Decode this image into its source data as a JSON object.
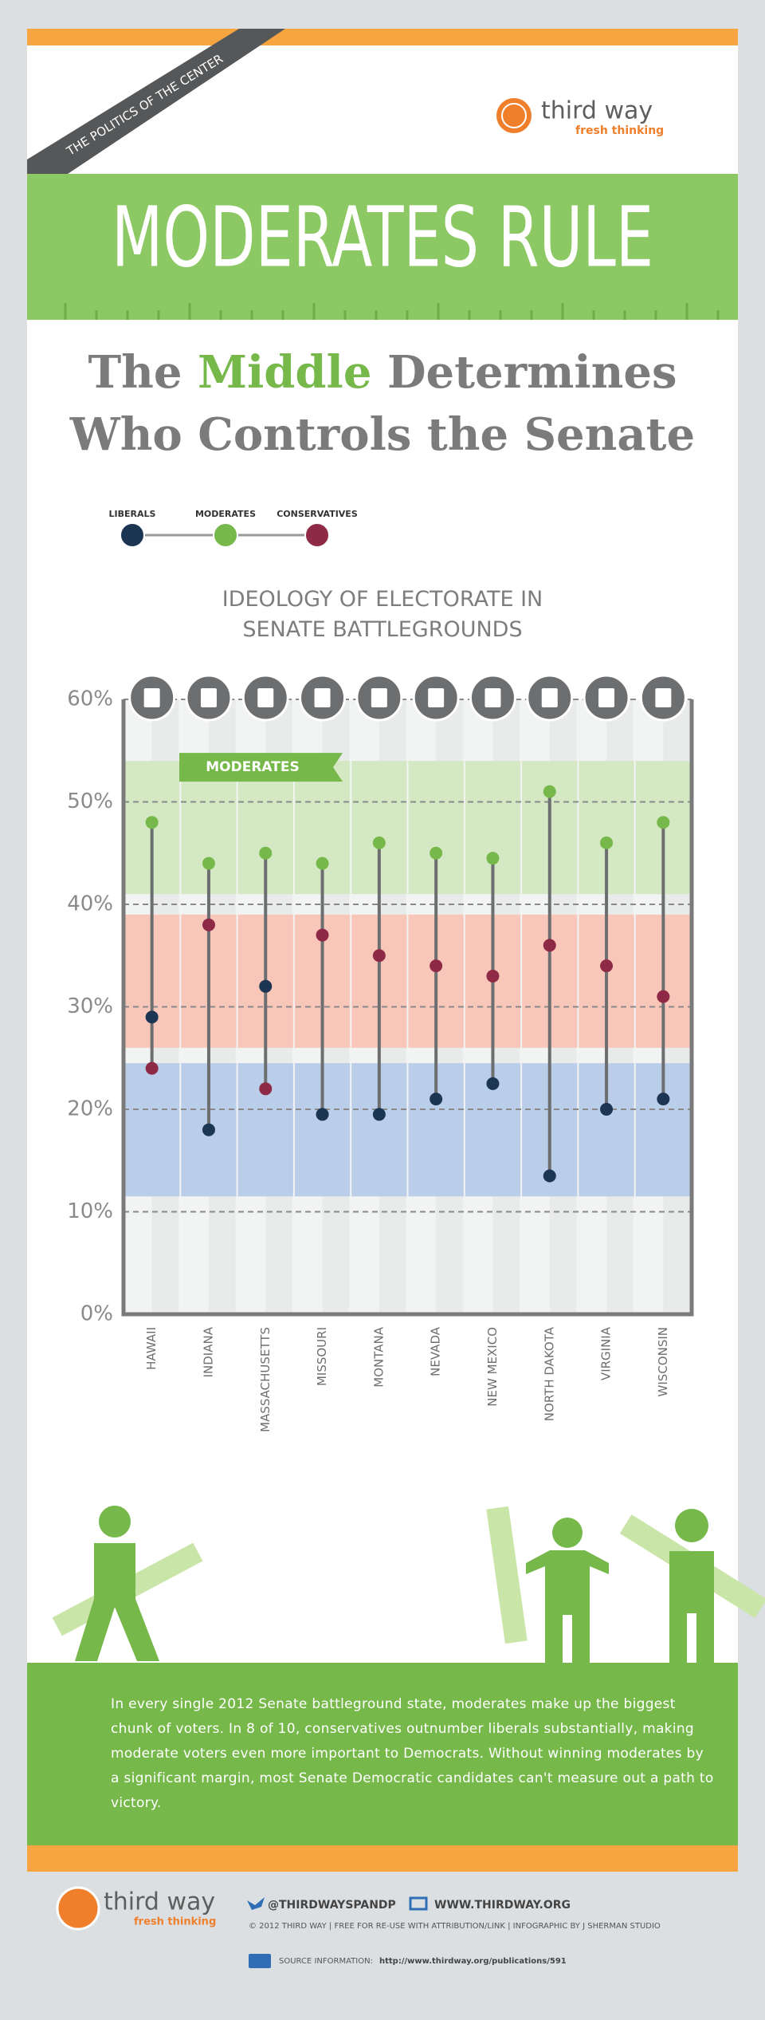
{
  "header": {
    "ribbon": "THE POLITICS OF THE CENTER",
    "logo_name": "third way",
    "logo_tagline": "fresh thinking",
    "banner": "MODERATES RULE",
    "headline_parts": [
      "The ",
      "Middle",
      " Determines"
    ],
    "headline_line2": "Who Controls the Senate"
  },
  "chart_data": {
    "type": "dot-range",
    "title": "IDEOLOGY OF ELECTORATE IN SENATE BATTLEGROUNDS",
    "categories": [
      "HAWAII",
      "INDIANA",
      "MASSACHUSETTS",
      "MISSOURI",
      "MONTANA",
      "NEVADA",
      "NEW MEXICO",
      "NORTH DAKOTA",
      "VIRGINIA",
      "WISCONSIN"
    ],
    "series": [
      {
        "name": "LIBERALS",
        "color": "#1c3553",
        "values": [
          29,
          18,
          32,
          19.5,
          19.5,
          21,
          22.5,
          13.5,
          20,
          21
        ]
      },
      {
        "name": "MODERATES",
        "color": "#76b84a",
        "values": [
          48,
          44,
          45,
          44,
          46,
          45,
          44.5,
          51,
          46,
          48
        ]
      },
      {
        "name": "CONSERVATIVES",
        "color": "#8e2a45",
        "values": [
          24,
          38,
          22,
          37,
          35,
          34,
          33,
          36,
          34,
          31
        ]
      }
    ],
    "bands": [
      {
        "label": "MODERATES",
        "color": "#d4e9c3",
        "range": [
          41,
          54
        ]
      },
      {
        "color": "#f8c7ba",
        "range": [
          26,
          39
        ]
      },
      {
        "color": "#bacde9",
        "range": [
          11.5,
          24.5
        ]
      }
    ],
    "ylim": [
      0,
      60
    ],
    "yticks": [
      {
        "value": 0,
        "label": "0%"
      },
      {
        "value": 10,
        "label": "10%"
      },
      {
        "value": 20,
        "label": "20%"
      },
      {
        "value": 30,
        "label": "30%"
      },
      {
        "value": 40,
        "label": "40%"
      },
      {
        "value": 50,
        "label": "50%"
      },
      {
        "value": 60,
        "label": "60%"
      }
    ],
    "grid": true
  },
  "body_text": "In every single 2012 Senate battleground state, moderates make up the biggest chunk of voters. In 8 of 10, conservatives outnumber liberals substantially, making moderate voters even more important to Democrats. Without winning moderates by a significant margin, most Senate Democratic candidates can't measure out a path to victory.",
  "footer": {
    "logo_name": "third way",
    "logo_tagline": "fresh thinking",
    "twitter": "@THIRDWAYSPANDP",
    "website": "WWW.THIRDWAY.ORG",
    "credits": "© 2012 THIRD WAY  |  FREE FOR RE-USE WITH ATTRIBUTION/LINK  |  INFOGRAPHIC BY J SHERMAN STUDIO",
    "source_label": "SOURCE INFORMATION:",
    "source_url": "http://www.thirdway.org/publications/591"
  }
}
